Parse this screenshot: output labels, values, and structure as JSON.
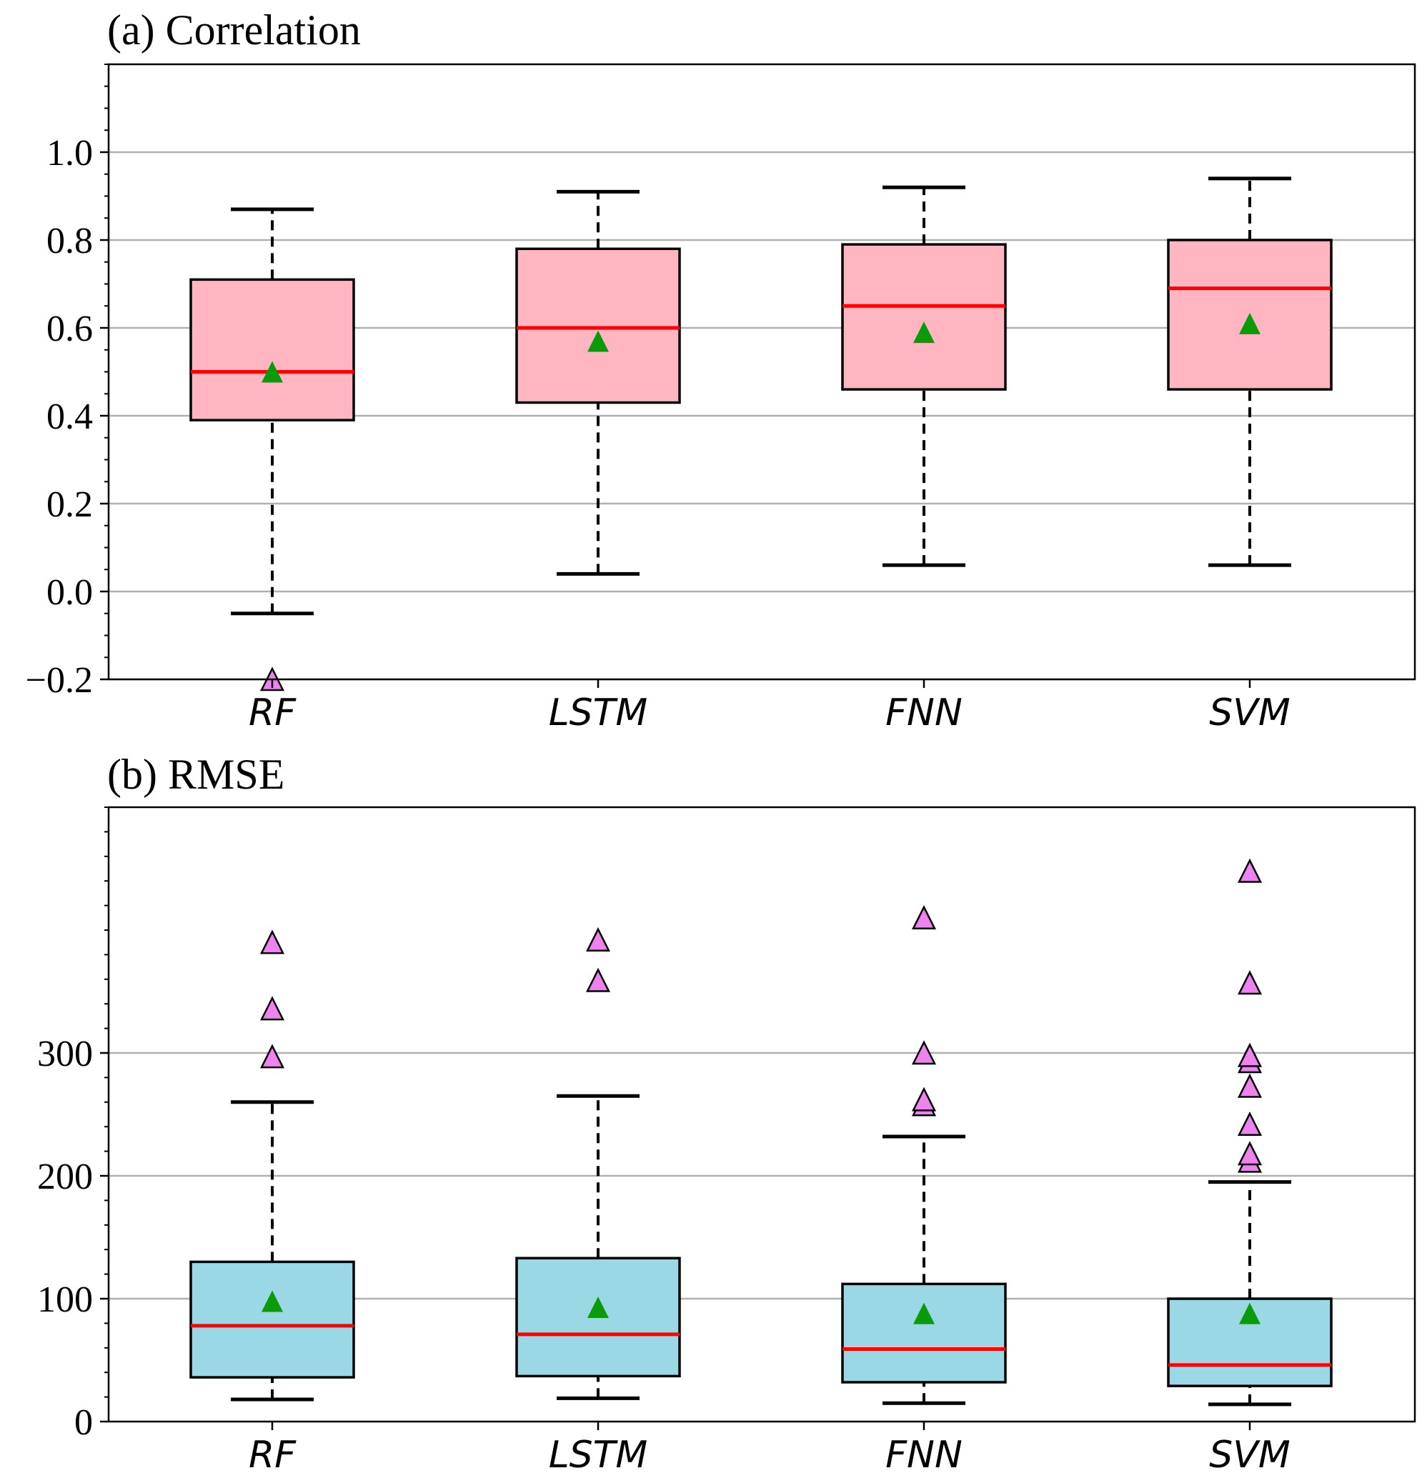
{
  "chart_data": [
    {
      "type": "box",
      "title": "(a) Correlation",
      "categories": [
        "RF",
        "LSTM",
        "FNN",
        "SVM"
      ],
      "ylim": [
        -0.2,
        1.2
      ],
      "yticks": [
        -0.2,
        0.0,
        0.2,
        0.4,
        0.6,
        0.8,
        1.0
      ],
      "ytick_labels": [
        "−0.2",
        "0.0",
        "0.2",
        "0.4",
        "0.6",
        "0.8",
        "1.0"
      ],
      "grid": "y",
      "box_color": "#ffb6c1",
      "median_color": "#ff0000",
      "mean_color": "#0a9a0a",
      "flier_color": "#ee82ee",
      "boxes": [
        {
          "label": "RF",
          "whisker_low": -0.05,
          "q1": 0.39,
          "median": 0.5,
          "q3": 0.71,
          "whisker_high": 0.87,
          "mean": 0.5,
          "outliers": [
            -0.2
          ]
        },
        {
          "label": "LSTM",
          "whisker_low": 0.04,
          "q1": 0.43,
          "median": 0.6,
          "q3": 0.78,
          "whisker_high": 0.91,
          "mean": 0.57,
          "outliers": []
        },
        {
          "label": "FNN",
          "whisker_low": 0.06,
          "q1": 0.46,
          "median": 0.65,
          "q3": 0.79,
          "whisker_high": 0.92,
          "mean": 0.59,
          "outliers": []
        },
        {
          "label": "SVM",
          "whisker_low": 0.06,
          "q1": 0.46,
          "median": 0.69,
          "q3": 0.8,
          "whisker_high": 0.94,
          "mean": 0.61,
          "outliers": []
        }
      ]
    },
    {
      "type": "box",
      "title": "(b) RMSE",
      "categories": [
        "RF",
        "LSTM",
        "FNN",
        "SVM"
      ],
      "ylim": [
        0,
        500
      ],
      "yticks": [
        0,
        100,
        200,
        300
      ],
      "ytick_labels": [
        "0",
        "100",
        "200",
        "300"
      ],
      "grid": "y",
      "box_color": "#9ad8e6",
      "median_color": "#ff0000",
      "mean_color": "#0a9a0a",
      "flier_color": "#ee82ee",
      "boxes": [
        {
          "label": "RF",
          "whisker_low": 18,
          "q1": 36,
          "median": 78,
          "q3": 130,
          "whisker_high": 260,
          "mean": 98,
          "outliers": [
            297,
            336,
            390
          ]
        },
        {
          "label": "LSTM",
          "whisker_low": 19,
          "q1": 37,
          "median": 71,
          "q3": 133,
          "whisker_high": 265,
          "mean": 93,
          "outliers": [
            359,
            392
          ]
        },
        {
          "label": "FNN",
          "whisker_low": 15,
          "q1": 32,
          "median": 59,
          "q3": 112,
          "whisker_high": 232,
          "mean": 88,
          "outliers": [
            258,
            262,
            300,
            410
          ]
        },
        {
          "label": "SVM",
          "whisker_low": 14,
          "q1": 29,
          "median": 46,
          "q3": 100,
          "whisker_high": 195,
          "mean": 88,
          "outliers": [
            212,
            218,
            242,
            273,
            293,
            298,
            357,
            448
          ]
        }
      ]
    }
  ]
}
